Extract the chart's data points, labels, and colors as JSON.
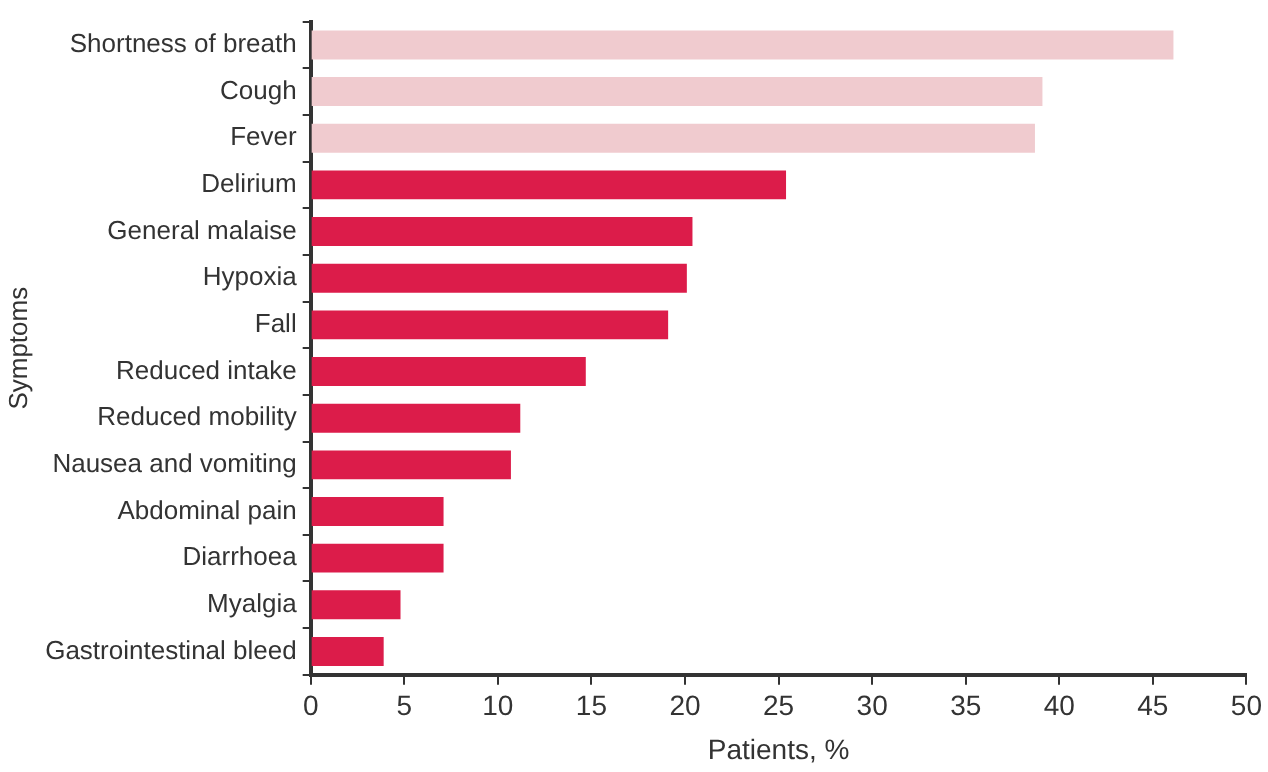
{
  "chart_data": {
    "type": "bar",
    "orientation": "horizontal",
    "xlabel": "Patients, %",
    "ylabel": "Symptoms",
    "categories": [
      "Shortness of breath",
      "Cough",
      "Fever",
      "Delirium",
      "General malaise",
      "Hypoxia",
      "Fall",
      "Reduced intake",
      "Reduced mobility",
      "Nausea and vomiting",
      "Abdominal pain",
      "Diarrhoea",
      "Myalgia",
      "Gastrointestinal bleed"
    ],
    "values": [
      46.1,
      39.1,
      38.7,
      25.4,
      20.4,
      20.1,
      19.1,
      14.7,
      11.2,
      10.7,
      7.1,
      7.1,
      4.8,
      3.9
    ],
    "colors": [
      "#f0cbcf",
      "#f0cbcf",
      "#f0cbcf",
      "#dc1c4a",
      "#dc1c4a",
      "#dc1c4a",
      "#dc1c4a",
      "#dc1c4a",
      "#dc1c4a",
      "#dc1c4a",
      "#dc1c4a",
      "#dc1c4a",
      "#dc1c4a",
      "#dc1c4a"
    ],
    "xlim": [
      0,
      50
    ],
    "xticks": [
      0,
      5,
      10,
      15,
      20,
      25,
      30,
      35,
      40,
      45,
      50
    ],
    "grid": false,
    "legend": false
  }
}
